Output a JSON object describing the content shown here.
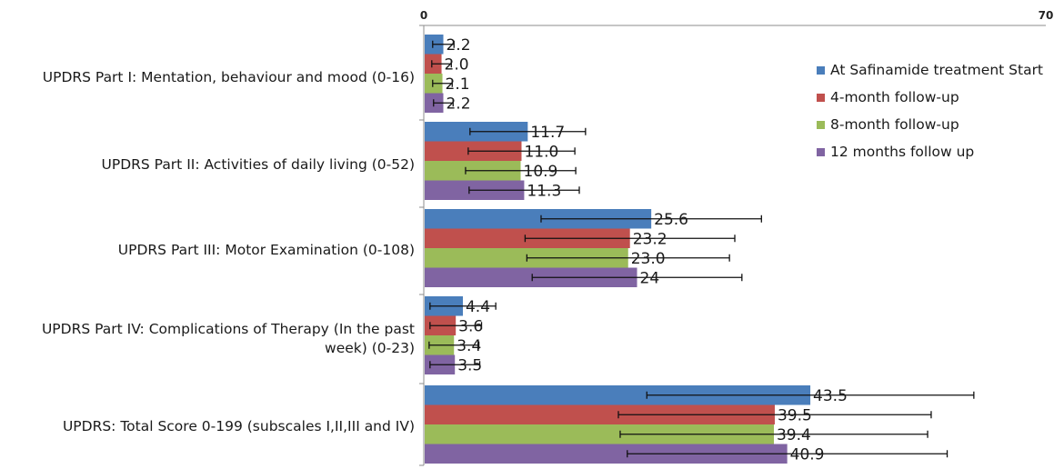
{
  "chart_data": {
    "type": "bar",
    "orientation": "horizontal",
    "xlim": [
      0,
      70
    ],
    "x_ticks": [
      "0",
      "70"
    ],
    "categories": [
      "UPDRS Part I: Mentation, behaviour and mood (0-16)",
      "UPDRS Part II: Activities of daily living (0-52)",
      "UPDRS Part III: Motor Examination (0-108)",
      "UPDRS Part IV: Complications of Therapy (In the past week) (0-23)",
      "UPDRS: Total Score 0-199 (subscales I,II,III and IV)"
    ],
    "series": [
      {
        "name": "At Safinamide treatment Start",
        "color": "#4a7ebb",
        "values": [
          2.2,
          11.7,
          25.6,
          4.4,
          43.5
        ],
        "labels": [
          "2.2",
          "11.7",
          "25.6",
          "4.4",
          "43.5"
        ],
        "error": [
          1.2,
          6.5,
          12.4,
          3.7,
          18.4
        ]
      },
      {
        "name": "4-month follow-up",
        "color": "#c0504d",
        "values": [
          2.0,
          11.0,
          23.2,
          3.6,
          39.5
        ],
        "labels": [
          "2.0",
          "11.0",
          "23.2",
          "3.6",
          "39.5"
        ],
        "error": [
          1.1,
          6.0,
          11.8,
          2.9,
          17.6
        ]
      },
      {
        "name": "8-month follow-up",
        "color": "#9bbb59",
        "values": [
          2.1,
          10.9,
          23.0,
          3.4,
          39.4
        ],
        "labels": [
          "2.1",
          "10.9",
          "23.0",
          "3.4",
          "39.4"
        ],
        "error": [
          1.1,
          6.2,
          11.4,
          2.8,
          17.3
        ]
      },
      {
        "name": "12 months follow up",
        "color": "#8064a2",
        "values": [
          2.2,
          11.3,
          24.0,
          3.5,
          40.9
        ],
        "labels": [
          "2.2",
          "11.3",
          "24",
          "3.5",
          "40.9"
        ],
        "error": [
          1.1,
          6.2,
          11.8,
          2.8,
          18.0
        ]
      }
    ],
    "error_bars": true,
    "grid": false,
    "legend_position": "right"
  }
}
